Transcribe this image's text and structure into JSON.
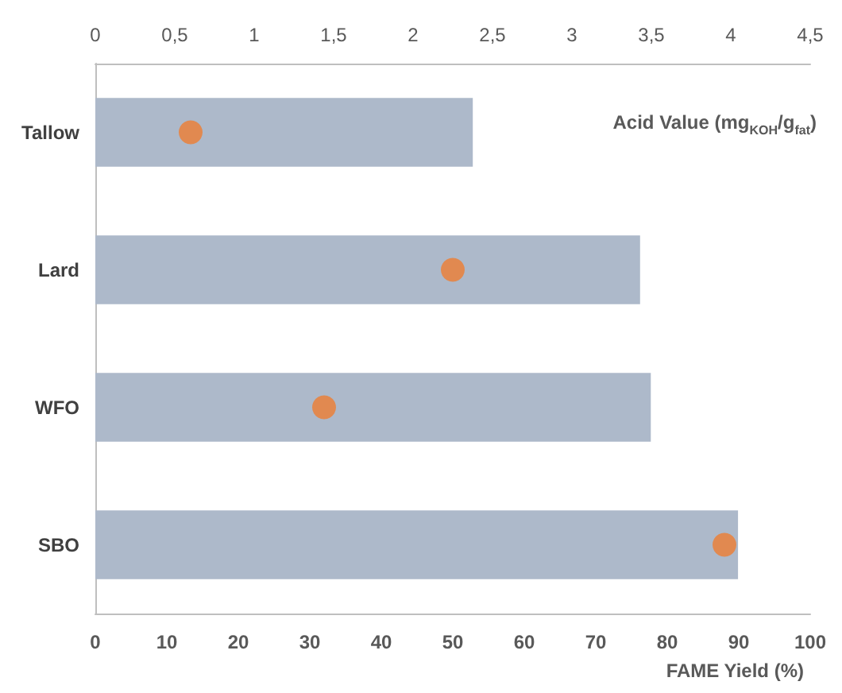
{
  "chart_data": {
    "type": "bar",
    "orientation": "horizontal",
    "categories": [
      "Tallow",
      "Lard",
      "WFO",
      "SBO"
    ],
    "xlabel": "FAME Yield (%)",
    "x2label": "Acid Value (mg$_{KOH}$/g$_{fat}$)",
    "xlim": [
      0,
      100
    ],
    "xticks": [
      0,
      10,
      20,
      30,
      40,
      50,
      60,
      70,
      80,
      90,
      100
    ],
    "x2lim": [
      0,
      4.5
    ],
    "x2ticks": [
      0,
      {
        "value": 0.5,
        "label": "0,5"
      },
      1,
      {
        "value": 1.5,
        "label": "1,5"
      },
      2,
      {
        "value": 2.5,
        "label": "2,5"
      },
      3,
      {
        "value": 3.5,
        "label": "3,5"
      },
      4,
      {
        "value": 4.5,
        "label": "4,5"
      }
    ],
    "series": [
      {
        "color": "#adb9ca",
        "values": [
          52.8,
          76.2,
          77.7,
          89.9
        ]
      },
      {
        "type": "scatter",
        "axis": "x2",
        "marker": "circle",
        "color": "#ed7d31",
        "values": [
          0.6,
          2.25,
          1.44,
          3.96
        ]
      }
    ],
    "grid": false
  }
}
